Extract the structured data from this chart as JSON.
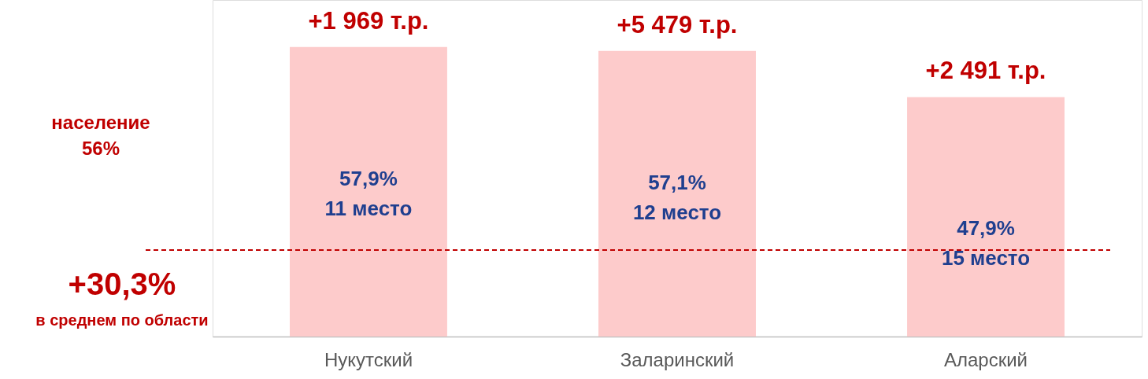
{
  "chart_data": {
    "type": "bar",
    "categories": [
      "Нукутский",
      "Заларинский",
      "Аларский"
    ],
    "values": [
      57.9,
      57.1,
      47.9
    ],
    "value_labels": [
      "57,9%\n11 место",
      "57,1%\n12 место",
      "47,9%\n15 место"
    ],
    "color": "#fdcbcb",
    "ylim": [
      0,
      67.3
    ],
    "tick_labels": "x",
    "grid": false,
    "ref_lines": [
      {
        "axis": "y",
        "value": 17.3,
        "color": "#c00000",
        "line_style": "dashed"
      }
    ],
    "annotations": [
      {
        "text": "+1 969 т.р.",
        "x": "Нукутский",
        "y": 57.9
      },
      {
        "text": "+5 479 т.р.",
        "x": "Заларинский",
        "y": 57.1
      },
      {
        "text": "+2 491 т.р.",
        "x": "Аларский",
        "y": 47.9
      },
      "население",
      "56%",
      "+30,3%",
      "в среднем по области"
    ]
  }
}
